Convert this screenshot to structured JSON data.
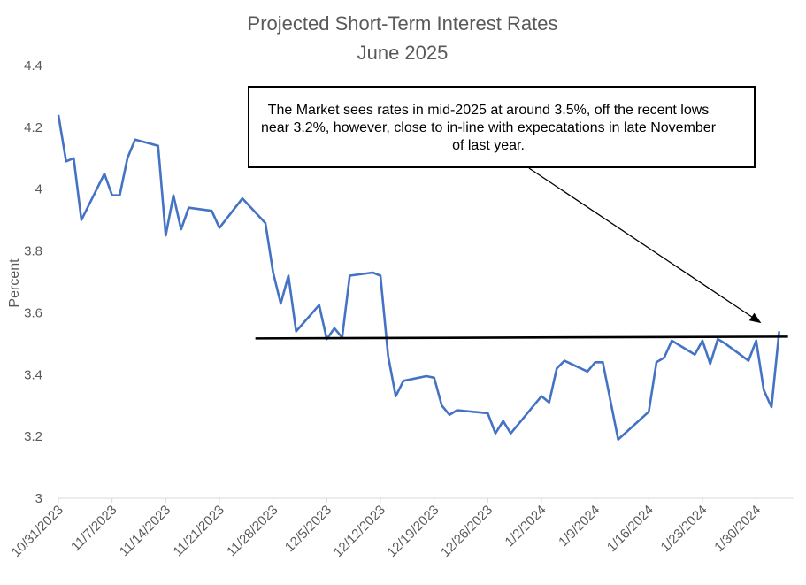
{
  "chart_data": {
    "type": "line",
    "title": [
      "Projected Short-Term Interest Rates",
      "June 2025"
    ],
    "xlabel": "",
    "ylabel": "Percent",
    "ylim": [
      3,
      4.4
    ],
    "yticks": [
      "3",
      "3.2",
      "3.4",
      "3.6",
      "3.8",
      "4",
      "4.2",
      "4.4"
    ],
    "xticks": [
      "10/31/2023",
      "11/7/2023",
      "11/14/2023",
      "11/21/2023",
      "11/28/2023",
      "12/5/2023",
      "12/12/2023",
      "12/19/2023",
      "12/26/2023",
      "1/2/2024",
      "1/9/2024",
      "1/16/2024",
      "1/23/2024",
      "1/30/2024"
    ],
    "xlim": [
      "2023-10-31",
      "2024-02-04"
    ],
    "grid": false,
    "series": [
      {
        "color": "#4472C4",
        "points": [
          [
            "2023-10-31",
            4.24
          ],
          [
            "2023-11-01",
            4.09
          ],
          [
            "2023-11-02",
            4.1
          ],
          [
            "2023-11-03",
            3.9
          ],
          [
            "2023-11-06",
            4.05
          ],
          [
            "2023-11-07",
            3.98
          ],
          [
            "2023-11-08",
            3.98
          ],
          [
            "2023-11-09",
            4.1
          ],
          [
            "2023-11-10",
            4.16
          ],
          [
            "2023-11-13",
            4.14
          ],
          [
            "2023-11-14",
            3.85
          ],
          [
            "2023-11-15",
            3.98
          ],
          [
            "2023-11-16",
            3.87
          ],
          [
            "2023-11-17",
            3.94
          ],
          [
            "2023-11-20",
            3.93
          ],
          [
            "2023-11-21",
            3.875
          ],
          [
            "2023-11-24",
            3.97
          ],
          [
            "2023-11-27",
            3.89
          ],
          [
            "2023-11-28",
            3.73
          ],
          [
            "2023-11-29",
            3.63
          ],
          [
            "2023-11-30",
            3.72
          ],
          [
            "2023-12-01",
            3.54
          ],
          [
            "2023-12-04",
            3.625
          ],
          [
            "2023-12-05",
            3.515
          ],
          [
            "2023-12-06",
            3.55
          ],
          [
            "2023-12-07",
            3.52
          ],
          [
            "2023-12-08",
            3.72
          ],
          [
            "2023-12-11",
            3.73
          ],
          [
            "2023-12-12",
            3.72
          ],
          [
            "2023-12-13",
            3.46
          ],
          [
            "2023-12-14",
            3.33
          ],
          [
            "2023-12-15",
            3.38
          ],
          [
            "2023-12-18",
            3.395
          ],
          [
            "2023-12-19",
            3.39
          ],
          [
            "2023-12-20",
            3.3
          ],
          [
            "2023-12-21",
            3.27
          ],
          [
            "2023-12-22",
            3.285
          ],
          [
            "2023-12-26",
            3.275
          ],
          [
            "2023-12-27",
            3.21
          ],
          [
            "2023-12-28",
            3.25
          ],
          [
            "2023-12-29",
            3.21
          ],
          [
            "2024-01-02",
            3.33
          ],
          [
            "2024-01-03",
            3.31
          ],
          [
            "2024-01-04",
            3.42
          ],
          [
            "2024-01-05",
            3.445
          ],
          [
            "2024-01-08",
            3.41
          ],
          [
            "2024-01-09",
            3.44
          ],
          [
            "2024-01-10",
            3.44
          ],
          [
            "2024-01-12",
            3.19
          ],
          [
            "2024-01-16",
            3.28
          ],
          [
            "2024-01-17",
            3.44
          ],
          [
            "2024-01-18",
            3.455
          ],
          [
            "2024-01-19",
            3.51
          ],
          [
            "2024-01-22",
            3.465
          ],
          [
            "2024-01-23",
            3.51
          ],
          [
            "2024-01-24",
            3.435
          ],
          [
            "2024-01-25",
            3.515
          ],
          [
            "2024-01-26",
            3.5
          ],
          [
            "2024-01-29",
            3.445
          ],
          [
            "2024-01-30",
            3.51
          ],
          [
            "2024-01-31",
            3.35
          ],
          [
            "2024-02-01",
            3.295
          ],
          [
            "2024-02-02",
            3.54
          ]
        ]
      }
    ],
    "reference_line": {
      "y": 3.52,
      "from": "2023-11-28",
      "to": "2024-02-02",
      "color": "#000000"
    },
    "annotation": {
      "text": "The Market sees rates in mid-2025 at around 3.5%, off the recent lows near 3.2%, however, close to in-line with expecatations in late November of last year.",
      "arrow_to": [
        "2024-01-31",
        3.54
      ]
    }
  }
}
